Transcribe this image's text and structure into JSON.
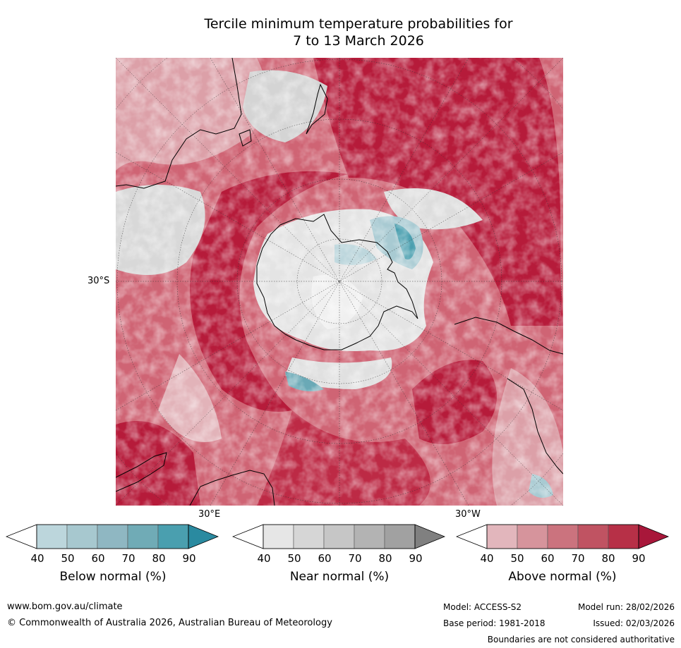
{
  "title": {
    "line1": "Tercile minimum temperature probabilities for",
    "line2": "7 to 13 March 2026"
  },
  "map": {
    "lat_label": "30°S",
    "lon_label_left": "30°E",
    "lon_label_right": "30°W",
    "colors": {
      "above_strong": "#b61b3a",
      "above_mid": "#c84a5e",
      "above_light": "#dc8a94",
      "near": "#d2d2d2",
      "below": "#5fa9b6",
      "land_line": "#000000"
    }
  },
  "legend": {
    "ticks": [
      "40",
      "50",
      "60",
      "70",
      "80",
      "90"
    ],
    "below": {
      "label": "Below normal (%)",
      "colors": [
        "#bcd6dc",
        "#a7c8cf",
        "#8fb7c2",
        "#70abb6",
        "#4a9faf"
      ],
      "extend_color": "#2a8aa0"
    },
    "near": {
      "label": "Near normal (%)",
      "colors": [
        "#e6e6e6",
        "#d6d6d6",
        "#c6c6c6",
        "#b3b3b3",
        "#a1a1a1"
      ],
      "extend_color": "#808080"
    },
    "above": {
      "label": "Above normal (%)",
      "colors": [
        "#e2b6bc",
        "#d6949c",
        "#cb737e",
        "#c05362",
        "#b73047"
      ],
      "extend_color": "#a8173a"
    }
  },
  "footer": {
    "website": "www.bom.gov.au/climate",
    "copyright": "© Commonwealth of Australia 2026, Australian Bureau of Meteorology",
    "model": "Model: ACCESS-S2",
    "model_run": "Model run: 28/02/2026",
    "base_period": "Base period: 1981-2018",
    "issued": "Issued: 02/03/2026",
    "disclaimer": "Boundaries are not considered authoritative"
  }
}
